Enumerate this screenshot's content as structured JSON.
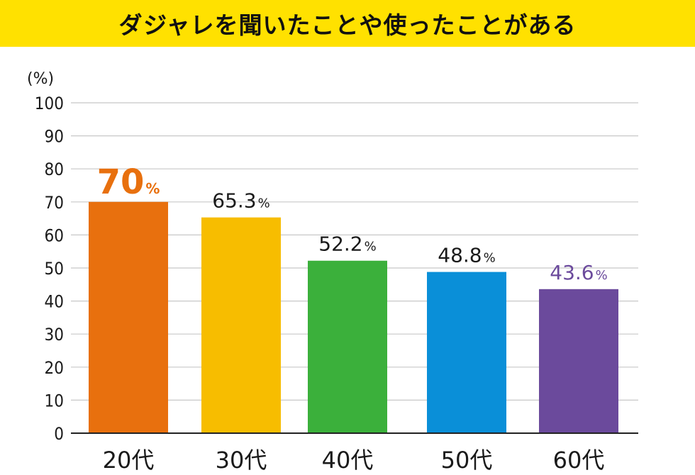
{
  "banner": {
    "title": "ダジャレを聞いたことや使ったことがある"
  },
  "colors": {
    "banner_bg": "#ffe100",
    "grid": "#c8c8c8",
    "axis": "#222222",
    "text": "#1a1a1a"
  },
  "chart_data": {
    "type": "bar",
    "title": "ダジャレを聞いたことや使ったことがある",
    "ylabel": "(%)",
    "xlabel": "",
    "ylim": [
      0,
      100
    ],
    "yticks": [
      0,
      10,
      20,
      30,
      40,
      50,
      60,
      70,
      80,
      90,
      100
    ],
    "grid": true,
    "categories": [
      "20代",
      "30代",
      "40代",
      "50代",
      "60代"
    ],
    "values": [
      70,
      65.3,
      52.2,
      48.8,
      43.6
    ],
    "value_labels": [
      "70",
      "65.3",
      "52.2",
      "48.8",
      "43.6"
    ],
    "value_unit": "%",
    "bar_colors": [
      "#e8700e",
      "#f7bd00",
      "#3bb03b",
      "#0a8fd8",
      "#6b4a9c"
    ],
    "label_colors": [
      "#e8700e",
      "#1a1a1a",
      "#1a1a1a",
      "#1a1a1a",
      "#6b4a9c"
    ]
  }
}
